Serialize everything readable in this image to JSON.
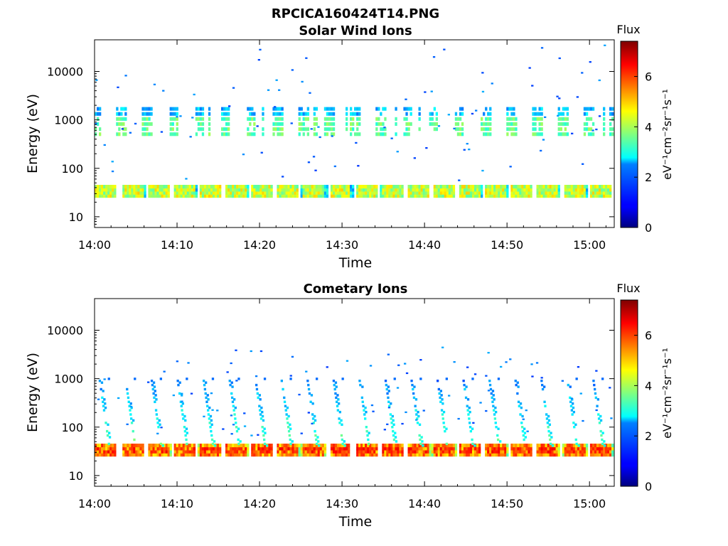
{
  "figure_title": "RPCICA160424T14.PNG",
  "chart_data": [
    {
      "type": "heatmap",
      "title": "Solar Wind Ions",
      "xlabel": "Time",
      "ylabel": "Energy (eV)",
      "x_ticks": [
        "14:00",
        "14:10",
        "14:20",
        "14:30",
        "14:40",
        "14:50",
        "15:00"
      ],
      "x_range": [
        "14:00",
        "15:03"
      ],
      "y_scale": "log",
      "y_ticks": [
        "10",
        "100",
        "1000",
        "10000"
      ],
      "y_range": [
        6,
        45000
      ],
      "colorbar": {
        "title": "Flux",
        "label": "eV⁻¹cm⁻²sr⁻¹s⁻¹",
        "ticks": [
          "0",
          "2",
          "4",
          "6"
        ],
        "range": [
          0,
          7.4
        ]
      },
      "features": {
        "band_low": {
          "energy_range_eV": [
            25,
            45
          ],
          "flux": 4.2
        },
        "band_high": {
          "energy_range_eV": [
            450,
            1900
          ],
          "flux": 3.2,
          "peak_energy_eV": 700
        },
        "burst_period_min": 3.15,
        "sparse_points_max_energy_eV": 35000
      }
    },
    {
      "type": "heatmap",
      "title": "Cometary Ions",
      "xlabel": "Time",
      "ylabel": "Energy (eV)",
      "x_ticks": [
        "14:00",
        "14:10",
        "14:20",
        "14:30",
        "14:40",
        "14:50",
        "15:00"
      ],
      "x_range": [
        "14:00",
        "15:03"
      ],
      "y_scale": "log",
      "y_ticks": [
        "10",
        "100",
        "1000",
        "10000"
      ],
      "y_range": [
        6,
        45000
      ],
      "colorbar": {
        "title": "Flux",
        "label": "eV⁻¹cm⁻²sr⁻¹s⁻¹",
        "ticks": [
          "0",
          "2",
          "4",
          "6"
        ],
        "range": [
          0,
          7.4
        ]
      },
      "features": {
        "band_low": {
          "energy_range_eV": [
            25,
            45
          ],
          "flux": 5.5,
          "peak_flux": 6.6
        },
        "dispersion_streaks_energy_eV": [
          45,
          900
        ],
        "burst_period_min": 3.15,
        "sparse_points_max_energy_eV": 4500
      }
    }
  ]
}
